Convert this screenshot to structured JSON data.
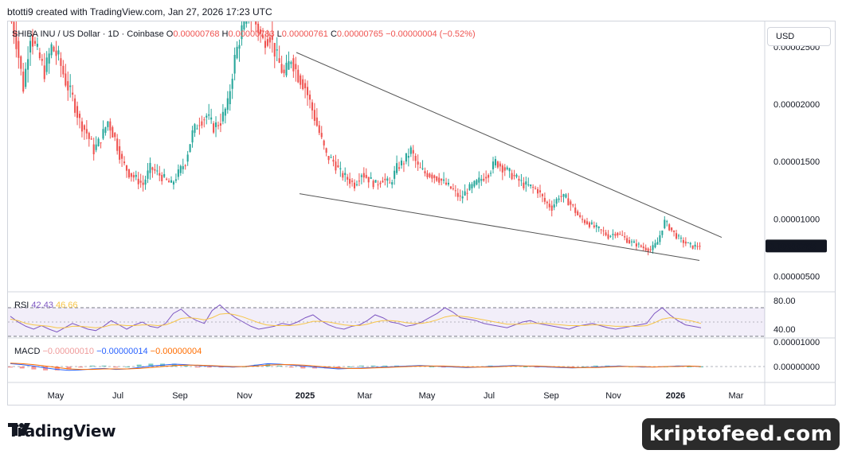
{
  "header": {
    "credit": "btotti9 created with TradingView.com, Jan 27, 2026 17:23 UTC"
  },
  "legend": {
    "symbol": "SHIBA INU / US Dollar · 1D · Coinbase",
    "open_label": "O",
    "open": "0.00000768",
    "high_label": "H",
    "high": "0.00000783",
    "low_label": "L",
    "low": "0.00000761",
    "close_label": "C",
    "close": "0.00000765",
    "change": "−0.00000004 (−0.52%)"
  },
  "currency_button": "USD",
  "price_tag": "0.00000765",
  "rsi": {
    "label": "RSI",
    "value": "42.43",
    "ma": "46.66"
  },
  "macd": {
    "label": "MACD",
    "hist": "−0.00000010",
    "macd": "−0.00000014",
    "signal": "−0.00000004"
  },
  "colors": {
    "up": "#26a69a",
    "down": "#ef5350",
    "rsi": "#7e57c2",
    "rsi_ma": "#f7c548",
    "macd": "#2962ff",
    "signal": "#ff6d00",
    "trend": "#555555"
  },
  "chart_data": [
    {
      "type": "candlestick",
      "title": "SHIBA INU / US Dollar · 1D · Coinbase",
      "x_ticks": [
        "May",
        "Jul",
        "Sep",
        "Nov",
        "2025",
        "Mar",
        "May",
        "Jul",
        "Sep",
        "Nov",
        "2026",
        "Mar"
      ],
      "y_ticks": [
        "0.00002500",
        "0.00002000",
        "0.00001500",
        "0.00001000",
        "0.00000500"
      ],
      "ylim": [
        3.8e-06,
        2.72e-05
      ],
      "series": [
        {
          "values": [
            2.8e-05,
            2.55e-05,
            2.15e-05,
            2.6e-05,
            2.45e-05,
            2.28e-05,
            2.5e-05,
            2.4e-05,
            2.2e-05,
            2.05e-05,
            1.85e-05,
            1.75e-05,
            1.6e-05,
            1.7e-05,
            1.85e-05,
            1.7e-05,
            1.5e-05,
            1.4e-05,
            1.35e-05,
            1.3e-05,
            1.45e-05,
            1.4e-05,
            1.35e-05,
            1.3e-05,
            1.4e-05,
            1.5e-05,
            1.75e-05,
            1.85e-05,
            1.9e-05,
            1.8e-05,
            1.85e-05,
            2e-05,
            2.4e-05,
            2.65e-05,
            2.8e-05,
            2.7e-05,
            2.55e-05,
            2.6e-05,
            2.4e-05,
            2.25e-05,
            2.4e-05,
            2.25e-05,
            2.15e-05,
            1.95e-05,
            1.75e-05,
            1.55e-05,
            1.5e-05,
            1.4e-05,
            1.35e-05,
            1.3e-05,
            1.4e-05,
            1.35e-05,
            1.3e-05,
            1.35e-05,
            1.3e-05,
            1.45e-05,
            1.5e-05,
            1.6e-05,
            1.45e-05,
            1.4e-05,
            1.38e-05,
            1.35e-05,
            1.3e-05,
            1.25e-05,
            1.18e-05,
            1.25e-05,
            1.3e-05,
            1.35e-05,
            1.4e-05,
            1.5e-05,
            1.45e-05,
            1.4e-05,
            1.35e-05,
            1.3e-05,
            1.28e-05,
            1.25e-05,
            1.15e-05,
            1.1e-05,
            1.2e-05,
            1.18e-05,
            1.1e-05,
            1e-05,
            9.7e-06,
            9.3e-06,
            9e-06,
            8.5e-06,
            8.8e-06,
            8.5e-06,
            8e-06,
            7.8e-06,
            7.5e-06,
            7.3e-06,
            8e-06,
            9.8e-06,
            9e-06,
            8.3e-06,
            7.9e-06,
            7.6e-06,
            7.7e-06
          ]
        }
      ],
      "trendlines": [
        {
          "from": [
            "2025-01",
            2.45e-05
          ],
          "to": [
            "2026-03",
            8.4e-06
          ]
        },
        {
          "from": [
            "2024-11",
            1.22e-05
          ],
          "to": [
            "2026-02",
            6.4e-06
          ]
        }
      ]
    },
    {
      "type": "line",
      "title": "RSI",
      "y_ticks": [
        "80.00",
        "40.00"
      ],
      "ylim": [
        30,
        90
      ],
      "bands": [
        70,
        30
      ],
      "series": [
        {
          "name": "RSI",
          "values": [
            58,
            50,
            44,
            40,
            45,
            40,
            36,
            42,
            48,
            44,
            40,
            38,
            44,
            52,
            46,
            40,
            46,
            50,
            44,
            42,
            48,
            62,
            68,
            58,
            52,
            48,
            66,
            74,
            64,
            56,
            50,
            44,
            40,
            42,
            44,
            48,
            46,
            50,
            56,
            60,
            52,
            46,
            42,
            40,
            44,
            46,
            52,
            60,
            56,
            50,
            48,
            44,
            46,
            50,
            56,
            62,
            70,
            64,
            56,
            54,
            52,
            48,
            46,
            44,
            42,
            46,
            50,
            52,
            48,
            46,
            44,
            42,
            40,
            44,
            46,
            48,
            45,
            42,
            40,
            42,
            44,
            46,
            48,
            62,
            70,
            60,
            52,
            46,
            44,
            42
          ]
        },
        {
          "name": "RSI MA",
          "values": [
            54,
            52,
            48,
            46,
            45,
            44,
            42,
            42,
            44,
            44,
            43,
            42,
            43,
            46,
            46,
            45,
            45,
            46,
            46,
            45,
            46,
            50,
            55,
            56,
            55,
            53,
            56,
            61,
            62,
            60,
            57,
            53,
            49,
            46,
            45,
            45,
            45,
            46,
            48,
            51,
            51,
            50,
            48,
            46,
            45,
            45,
            47,
            50,
            52,
            52,
            51,
            49,
            48,
            48,
            50,
            53,
            57,
            59,
            58,
            57,
            55,
            53,
            51,
            49,
            47,
            47,
            47,
            48,
            48,
            48,
            47,
            46,
            45,
            45,
            45,
            46,
            46,
            45,
            44,
            44,
            44,
            44,
            45,
            49,
            54,
            56,
            55,
            53,
            51,
            48
          ]
        }
      ]
    },
    {
      "type": "line",
      "title": "MACD",
      "y_ticks": [
        "0.00001000",
        "0.00000000"
      ],
      "series": [
        {
          "name": "MACD",
          "values": [
            0.6,
            0.4,
            0.1,
            -0.3,
            -0.6,
            -0.8,
            -0.7,
            -0.5,
            -0.4,
            -0.6,
            -0.5,
            -0.2,
            0.1,
            0.3,
            0.5,
            0.4,
            0.2,
            0.1,
            0.0,
            -0.1,
            0.0,
            0.3,
            0.6,
            0.5,
            0.3,
            0.1,
            -0.1,
            -0.3,
            -0.5,
            -0.4,
            -0.3,
            -0.2,
            -0.1,
            0.0,
            0.1,
            0.2,
            0.1,
            0.0,
            -0.1,
            -0.2,
            -0.1,
            0.0,
            0.1,
            0.2,
            0.1,
            0.0,
            -0.1,
            -0.2,
            -0.3,
            -0.2,
            -0.1,
            0.0,
            0.1,
            0.0,
            -0.1,
            -0.1,
            0.0,
            0.1,
            0.1,
            0.0
          ]
        },
        {
          "name": "Signal",
          "values": [
            0.7,
            0.6,
            0.4,
            0.1,
            -0.2,
            -0.5,
            -0.6,
            -0.6,
            -0.5,
            -0.5,
            -0.5,
            -0.4,
            -0.2,
            0.0,
            0.2,
            0.3,
            0.3,
            0.2,
            0.1,
            0.0,
            0.0,
            0.1,
            0.3,
            0.4,
            0.4,
            0.3,
            0.1,
            -0.1,
            -0.3,
            -0.4,
            -0.4,
            -0.3,
            -0.2,
            -0.1,
            0.0,
            0.1,
            0.1,
            0.1,
            0.0,
            -0.1,
            -0.1,
            -0.1,
            0.0,
            0.1,
            0.1,
            0.1,
            0.0,
            -0.1,
            -0.2,
            -0.2,
            -0.2,
            -0.1,
            0.0,
            0.0,
            0.0,
            -0.1,
            0.0,
            0.0,
            0.1,
            0.0
          ]
        }
      ]
    }
  ],
  "footer": {
    "logo_text": "TradingView",
    "watermark": "kriptofeed.com"
  }
}
